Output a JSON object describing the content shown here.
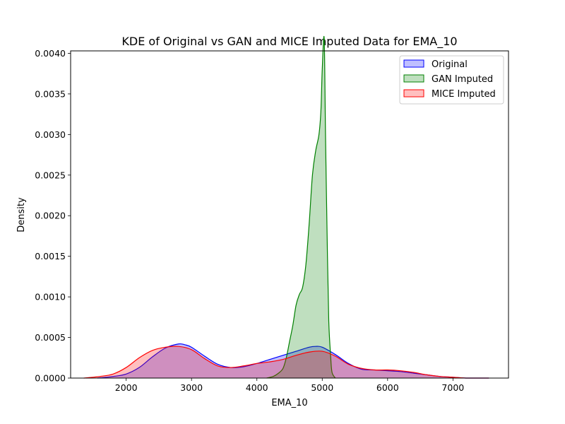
{
  "chart_data": {
    "type": "area",
    "title": "KDE of Original vs GAN and MICE Imputed Data for EMA_10",
    "xlabel": "EMA_10",
    "ylabel": "Density",
    "xlim": [
      1150,
      7850
    ],
    "ylim": [
      0,
      0.00403
    ],
    "xticks": [
      2000,
      3000,
      4000,
      5000,
      6000,
      7000
    ],
    "yticks": [
      0.0,
      0.0005,
      0.001,
      0.0015,
      0.002,
      0.0025,
      0.003,
      0.0035,
      0.004
    ],
    "ytick_labels": [
      "0.0000",
      "0.0005",
      "0.0010",
      "0.0015",
      "0.0020",
      "0.0025",
      "0.0030",
      "0.0035",
      "0.0040"
    ],
    "grid": false,
    "legend_position": "top-right",
    "series": [
      {
        "name": "Original",
        "color": "#0000ff",
        "x": [
          1560,
          1800,
          2000,
          2200,
          2400,
          2600,
          2800,
          2900,
          3000,
          3200,
          3400,
          3600,
          3800,
          4000,
          4200,
          4400,
          4600,
          4800,
          4900,
          5000,
          5200,
          5400,
          5600,
          5800,
          6000,
          6200,
          6400,
          6600,
          6800,
          7000,
          7200,
          7550
        ],
        "y": [
          0.0,
          2e-05,
          5e-05,
          0.00013,
          0.00026,
          0.00037,
          0.00042,
          0.00041,
          0.00038,
          0.00027,
          0.00017,
          0.00013,
          0.00014,
          0.00018,
          0.00023,
          0.00028,
          0.00033,
          0.00038,
          0.00039,
          0.00038,
          0.00029,
          0.00018,
          0.00011,
          0.0001,
          9e-05,
          8e-05,
          6e-05,
          4e-05,
          2e-05,
          1e-05,
          0.0,
          0.0
        ]
      },
      {
        "name": "GAN Imputed",
        "color": "#008000",
        "x": [
          4150,
          4250,
          4330,
          4400,
          4450,
          4500,
          4550,
          4600,
          4650,
          4700,
          4750,
          4800,
          4850,
          4900,
          4950,
          4980,
          5000,
          5030,
          5050,
          5080,
          5100,
          5130,
          5150,
          5200
        ],
        "y": [
          0.0,
          2e-05,
          6e-05,
          0.00012,
          0.00025,
          0.00045,
          0.00065,
          0.0009,
          0.00103,
          0.00112,
          0.0014,
          0.0019,
          0.0025,
          0.0028,
          0.003,
          0.0033,
          0.0038,
          0.00418,
          0.003,
          0.0015,
          0.0007,
          0.00025,
          7e-05,
          0.0
        ]
      },
      {
        "name": "MICE Imputed",
        "color": "#ff0000",
        "x": [
          1350,
          1600,
          1800,
          2000,
          2200,
          2400,
          2600,
          2800,
          3000,
          3200,
          3400,
          3600,
          3800,
          4000,
          4200,
          4400,
          4600,
          4800,
          5000,
          5200,
          5400,
          5600,
          5800,
          6000,
          6200,
          6400,
          6600,
          6800,
          7000,
          7200,
          7400,
          7550
        ],
        "y": [
          0.0,
          2e-05,
          5e-05,
          0.00013,
          0.00025,
          0.00034,
          0.00038,
          0.00039,
          0.00035,
          0.00024,
          0.00015,
          0.00013,
          0.00015,
          0.00018,
          0.0002,
          0.00023,
          0.00028,
          0.00032,
          0.00033,
          0.00027,
          0.00017,
          0.00012,
          0.0001,
          0.0001,
          9e-05,
          7e-05,
          4e-05,
          2e-05,
          1e-05,
          0.0,
          0.0,
          0.0
        ]
      }
    ]
  }
}
